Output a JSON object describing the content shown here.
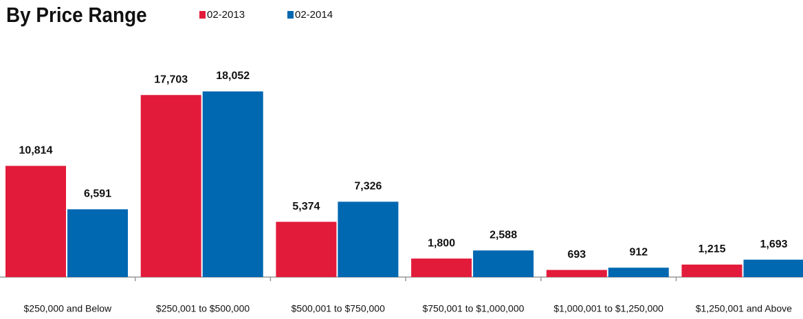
{
  "chart_data": {
    "type": "bar",
    "title": "By Price Range",
    "categories": [
      "$250,000 and Below",
      "$250,001 to $500,000",
      "$500,001 to $750,000",
      "$750,001 to $1,000,000",
      "$1,000,001 to $1,250,000",
      "$1,250,001 and Above"
    ],
    "series": [
      {
        "name": "02-2013",
        "color": "#e31b3a",
        "values": [
          10814,
          17703,
          5374,
          1800,
          693,
          1215
        ],
        "value_labels": [
          "10,814",
          "17,703",
          "5,374",
          "1,800",
          "693",
          "1,215"
        ]
      },
      {
        "name": "02-2014",
        "color": "#0067b1",
        "values": [
          6591,
          18052,
          7326,
          2588,
          912,
          1693
        ],
        "value_labels": [
          "6,591",
          "18,052",
          "7,326",
          "2,588",
          "912",
          "1,693"
        ]
      }
    ]
  }
}
